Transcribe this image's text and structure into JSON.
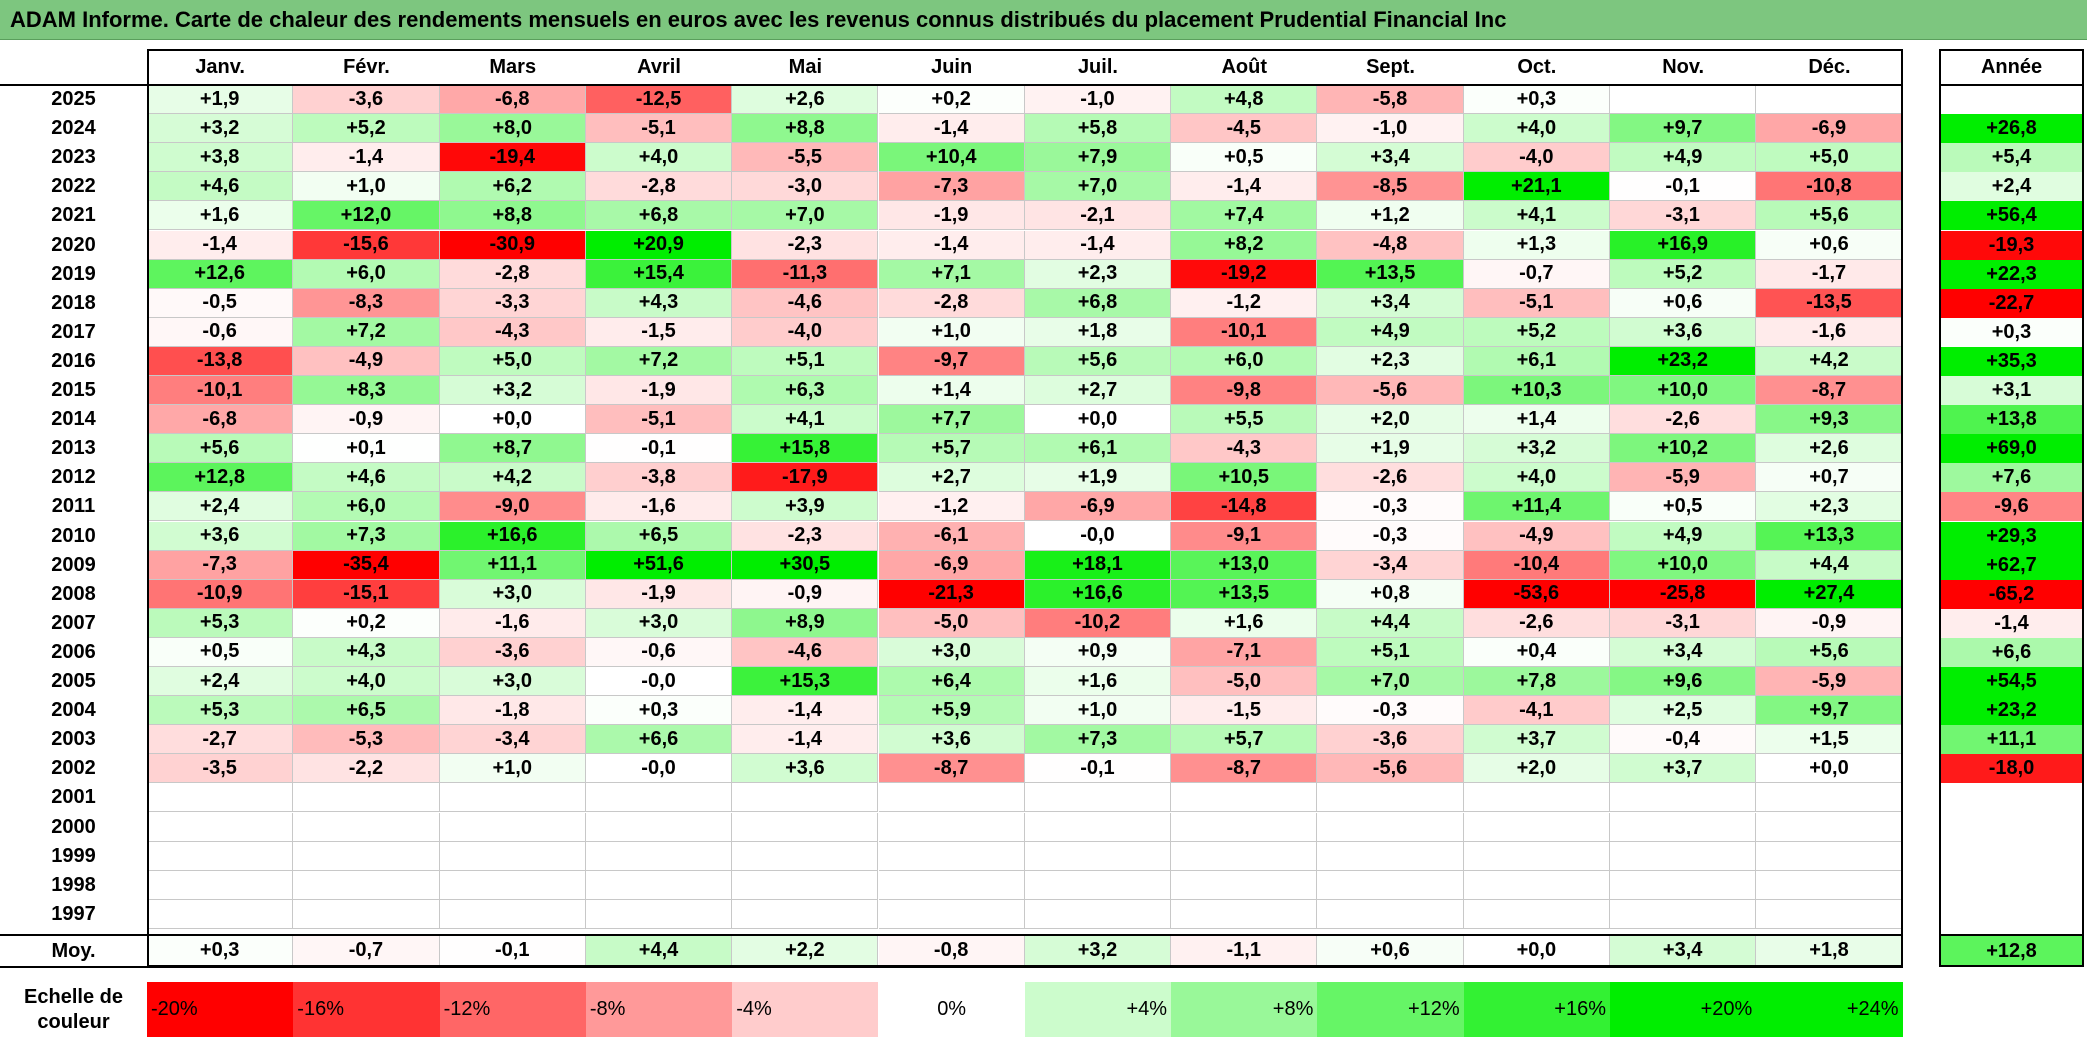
{
  "title": "ADAM Informe. Carte de chaleur des rendements mensuels en euros avec les revenus connus distribués du placement Prudential Financial Inc",
  "chart_data": {
    "type": "heatmap",
    "title": "ADAM Informe. Carte de chaleur des rendements mensuels en euros avec les revenus connus distribués du placement Prudential Financial Inc",
    "months": [
      "Janv.",
      "Févr.",
      "Mars",
      "Avril",
      "Mai",
      "Juin",
      "Juil.",
      "Août",
      "Sept.",
      "Oct.",
      "Nov.",
      "Déc."
    ],
    "year_header": "Année",
    "rows": [
      {
        "year": "2025",
        "m": [
          "+1,9",
          "-3,6",
          "-6,8",
          "-12,5",
          "+2,6",
          "+0,2",
          "-1,0",
          "+4,8",
          "-5,8",
          "+0,3",
          "",
          ""
        ],
        "y": ""
      },
      {
        "year": "2024",
        "m": [
          "+3,2",
          "+5,2",
          "+8,0",
          "-5,1",
          "+8,8",
          "-1,4",
          "+5,8",
          "-4,5",
          "-1,0",
          "+4,0",
          "+9,7",
          "-6,9"
        ],
        "y": "+26,8"
      },
      {
        "year": "2023",
        "m": [
          "+3,8",
          "-1,4",
          "-19,4",
          "+4,0",
          "-5,5",
          "+10,4",
          "+7,9",
          "+0,5",
          "+3,4",
          "-4,0",
          "+4,9",
          "+5,0"
        ],
        "y": "+5,4"
      },
      {
        "year": "2022",
        "m": [
          "+4,6",
          "+1,0",
          "+6,2",
          "-2,8",
          "-3,0",
          "-7,3",
          "+7,0",
          "-1,4",
          "-8,5",
          "+21,1",
          "-0,1",
          "-10,8"
        ],
        "y": "+2,4"
      },
      {
        "year": "2021",
        "m": [
          "+1,6",
          "+12,0",
          "+8,8",
          "+6,8",
          "+7,0",
          "-1,9",
          "-2,1",
          "+7,4",
          "+1,2",
          "+4,1",
          "-3,1",
          "+5,6"
        ],
        "y": "+56,4"
      },
      {
        "year": "2020",
        "m": [
          "-1,4",
          "-15,6",
          "-30,9",
          "+20,9",
          "-2,3",
          "-1,4",
          "-1,4",
          "+8,2",
          "-4,8",
          "+1,3",
          "+16,9",
          "+0,6"
        ],
        "y": "-19,3"
      },
      {
        "year": "2019",
        "m": [
          "+12,6",
          "+6,0",
          "-2,8",
          "+15,4",
          "-11,3",
          "+7,1",
          "+2,3",
          "-19,2",
          "+13,5",
          "-0,7",
          "+5,2",
          "-1,7"
        ],
        "y": "+22,3"
      },
      {
        "year": "2018",
        "m": [
          "-0,5",
          "-8,3",
          "-3,3",
          "+4,3",
          "-4,6",
          "-2,8",
          "+6,8",
          "-1,2",
          "+3,4",
          "-5,1",
          "+0,6",
          "-13,5"
        ],
        "y": "-22,7"
      },
      {
        "year": "2017",
        "m": [
          "-0,6",
          "+7,2",
          "-4,3",
          "-1,5",
          "-4,0",
          "+1,0",
          "+1,8",
          "-10,1",
          "+4,9",
          "+5,2",
          "+3,6",
          "-1,6"
        ],
        "y": "+0,3"
      },
      {
        "year": "2016",
        "m": [
          "-13,8",
          "-4,9",
          "+5,0",
          "+7,2",
          "+5,1",
          "-9,7",
          "+5,6",
          "+6,0",
          "+2,3",
          "+6,1",
          "+23,2",
          "+4,2"
        ],
        "y": "+35,3"
      },
      {
        "year": "2015",
        "m": [
          "-10,1",
          "+8,3",
          "+3,2",
          "-1,9",
          "+6,3",
          "+1,4",
          "+2,7",
          "-9,8",
          "-5,6",
          "+10,3",
          "+10,0",
          "-8,7"
        ],
        "y": "+3,1"
      },
      {
        "year": "2014",
        "m": [
          "-6,8",
          "-0,9",
          "+0,0",
          "-5,1",
          "+4,1",
          "+7,7",
          "+0,0",
          "+5,5",
          "+2,0",
          "+1,4",
          "-2,6",
          "+9,3"
        ],
        "y": "+13,8"
      },
      {
        "year": "2013",
        "m": [
          "+5,6",
          "+0,1",
          "+8,7",
          "-0,1",
          "+15,8",
          "+5,7",
          "+6,1",
          "-4,3",
          "+1,9",
          "+3,2",
          "+10,2",
          "+2,6"
        ],
        "y": "+69,0"
      },
      {
        "year": "2012",
        "m": [
          "+12,8",
          "+4,6",
          "+4,2",
          "-3,8",
          "-17,9",
          "+2,7",
          "+1,9",
          "+10,5",
          "-2,6",
          "+4,0",
          "-5,9",
          "+0,7"
        ],
        "y": "+7,6"
      },
      {
        "year": "2011",
        "m": [
          "+2,4",
          "+6,0",
          "-9,0",
          "-1,6",
          "+3,9",
          "-1,2",
          "-6,9",
          "-14,8",
          "-0,3",
          "+11,4",
          "+0,5",
          "+2,3"
        ],
        "y": "-9,6"
      },
      {
        "year": "2010",
        "m": [
          "+3,6",
          "+7,3",
          "+16,6",
          "+6,5",
          "-2,3",
          "-6,1",
          "-0,0",
          "-9,1",
          "-0,3",
          "-4,9",
          "+4,9",
          "+13,3"
        ],
        "y": "+29,3"
      },
      {
        "year": "2009",
        "m": [
          "-7,3",
          "-35,4",
          "+11,1",
          "+51,6",
          "+30,5",
          "-6,9",
          "+18,1",
          "+13,0",
          "-3,4",
          "-10,4",
          "+10,0",
          "+4,4"
        ],
        "y": "+62,7"
      },
      {
        "year": "2008",
        "m": [
          "-10,9",
          "-15,1",
          "+3,0",
          "-1,9",
          "-0,9",
          "-21,3",
          "+16,6",
          "+13,5",
          "+0,8",
          "-53,6",
          "-25,8",
          "+27,4"
        ],
        "y": "-65,2"
      },
      {
        "year": "2007",
        "m": [
          "+5,3",
          "+0,2",
          "-1,6",
          "+3,0",
          "+8,9",
          "-5,0",
          "-10,2",
          "+1,6",
          "+4,4",
          "-2,6",
          "-3,1",
          "-0,9"
        ],
        "y": "-1,4"
      },
      {
        "year": "2006",
        "m": [
          "+0,5",
          "+4,3",
          "-3,6",
          "-0,6",
          "-4,6",
          "+3,0",
          "+0,9",
          "-7,1",
          "+5,1",
          "+0,4",
          "+3,4",
          "+5,6"
        ],
        "y": "+6,6"
      },
      {
        "year": "2005",
        "m": [
          "+2,4",
          "+4,0",
          "+3,0",
          "-0,0",
          "+15,3",
          "+6,4",
          "+1,6",
          "-5,0",
          "+7,0",
          "+7,8",
          "+9,6",
          "-5,9"
        ],
        "y": "+54,5"
      },
      {
        "year": "2004",
        "m": [
          "+5,3",
          "+6,5",
          "-1,8",
          "+0,3",
          "-1,4",
          "+5,9",
          "+1,0",
          "-1,5",
          "-0,3",
          "-4,1",
          "+2,5",
          "+9,7"
        ],
        "y": "+23,2"
      },
      {
        "year": "2003",
        "m": [
          "-2,7",
          "-5,3",
          "-3,4",
          "+6,6",
          "-1,4",
          "+3,6",
          "+7,3",
          "+5,7",
          "-3,6",
          "+3,7",
          "-0,4",
          "+1,5"
        ],
        "y": "+11,1"
      },
      {
        "year": "2002",
        "m": [
          "-3,5",
          "-2,2",
          "+1,0",
          "-0,0",
          "+3,6",
          "-8,7",
          "-0,1",
          "-8,7",
          "-5,6",
          "+2,0",
          "+3,7",
          "+0,0"
        ],
        "y": "-18,0"
      },
      {
        "year": "2001",
        "m": [
          "",
          "",
          "",
          "",
          "",
          "",
          "",
          "",
          "",
          "",
          "",
          ""
        ],
        "y": ""
      },
      {
        "year": "2000",
        "m": [
          "",
          "",
          "",
          "",
          "",
          "",
          "",
          "",
          "",
          "",
          "",
          ""
        ],
        "y": ""
      },
      {
        "year": "1999",
        "m": [
          "",
          "",
          "",
          "",
          "",
          "",
          "",
          "",
          "",
          "",
          "",
          ""
        ],
        "y": ""
      },
      {
        "year": "1998",
        "m": [
          "",
          "",
          "",
          "",
          "",
          "",
          "",
          "",
          "",
          "",
          "",
          ""
        ],
        "y": ""
      },
      {
        "year": "1997",
        "m": [
          "",
          "",
          "",
          "",
          "",
          "",
          "",
          "",
          "",
          "",
          "",
          ""
        ],
        "y": ""
      }
    ],
    "average": {
      "label": "Moy.",
      "m": [
        "+0,3",
        "-0,7",
        "-0,1",
        "+4,4",
        "+2,2",
        "-0,8",
        "+3,2",
        "-1,1",
        "+0,6",
        "+0,0",
        "+3,4",
        "+1,8"
      ],
      "y": "+12,8"
    },
    "scale": {
      "label": "Echelle de couleur",
      "steps": [
        "-20%",
        "-16%",
        "-12%",
        "-8%",
        "-4%",
        "0%",
        "+4%",
        "+8%",
        "+12%",
        "+16%",
        "+20%",
        "+24%"
      ]
    },
    "colors": {
      "neg_max": "#ff0000",
      "neutral": "#ffffff",
      "pos_max": "#00ee00",
      "title_bar": "#7dc67f"
    }
  }
}
